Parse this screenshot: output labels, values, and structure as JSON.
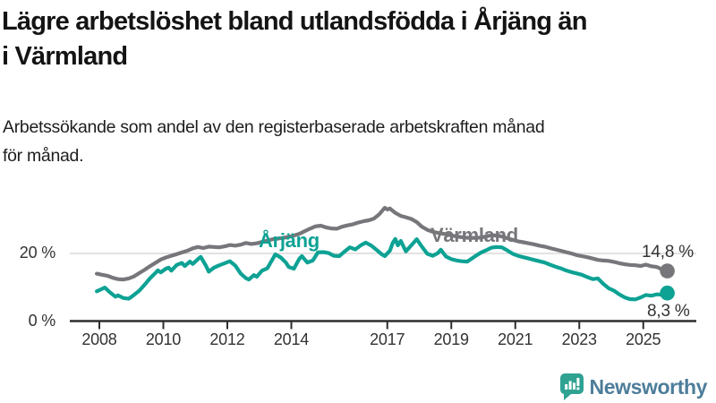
{
  "header": {
    "title_lines": [
      "Lägre arbetslöshet bland utlandsfödda i Årjäng än",
      "i Värmland"
    ],
    "subtitle_lines": [
      "Arbetssökande som andel av den registerbaserade arbetskraften månad",
      "för månad."
    ]
  },
  "footer": {
    "brand": "Newsworthy"
  },
  "colors": {
    "arjang": "#0da294",
    "varmland": "#76767b",
    "grid": "#d9d9d9",
    "axis": "#2d2d2d",
    "tick_text": "#333333",
    "title_text": "#141414",
    "brand_mark": "#2fa292",
    "brand_text": "#4d7d9a"
  },
  "chart_data": {
    "type": "line",
    "title": "Lägre arbetslöshet bland utlandsfödda i Årjäng än i Värmland",
    "subtitle": "Arbetssökande som andel av den registerbaserade arbetskraften månad för månad.",
    "unit": "%",
    "x_range": [
      2008,
      2025.75
    ],
    "ylim": [
      0,
      37
    ],
    "grid": "single-line-at-20",
    "legend_position": "inline-labels",
    "x_ticks": [
      2008,
      2010,
      2012,
      2014,
      2017,
      2019,
      2021,
      2023,
      2025
    ],
    "y_ticks": [
      {
        "value": 20,
        "label": "20 %"
      },
      {
        "value": 0,
        "label": "0 %"
      }
    ],
    "series": [
      {
        "name": "Värmland",
        "color": "#76767b",
        "end_label": "14,8 %",
        "end_value": 14.8,
        "points": [
          [
            2007.92,
            14.0
          ],
          [
            2008.08,
            13.7
          ],
          [
            2008.25,
            13.4
          ],
          [
            2008.42,
            12.8
          ],
          [
            2008.58,
            12.4
          ],
          [
            2008.75,
            12.3
          ],
          [
            2008.92,
            12.6
          ],
          [
            2009.08,
            13.2
          ],
          [
            2009.25,
            14.2
          ],
          [
            2009.42,
            15.2
          ],
          [
            2009.58,
            16.2
          ],
          [
            2009.75,
            17.2
          ],
          [
            2009.92,
            18.2
          ],
          [
            2010.08,
            18.8
          ],
          [
            2010.25,
            19.3
          ],
          [
            2010.42,
            19.8
          ],
          [
            2010.58,
            20.3
          ],
          [
            2010.75,
            20.8
          ],
          [
            2010.92,
            21.5
          ],
          [
            2011.08,
            21.9
          ],
          [
            2011.25,
            21.6
          ],
          [
            2011.42,
            22.0
          ],
          [
            2011.58,
            21.9
          ],
          [
            2011.75,
            21.8
          ],
          [
            2011.92,
            22.1
          ],
          [
            2012.08,
            22.5
          ],
          [
            2012.25,
            22.3
          ],
          [
            2012.42,
            22.6
          ],
          [
            2012.58,
            23.1
          ],
          [
            2012.75,
            22.8
          ],
          [
            2012.92,
            23.0
          ],
          [
            2013.08,
            23.4
          ],
          [
            2013.25,
            23.8
          ],
          [
            2013.42,
            24.2
          ],
          [
            2013.58,
            24.4
          ],
          [
            2013.75,
            24.6
          ],
          [
            2013.92,
            24.9
          ],
          [
            2014.08,
            25.3
          ],
          [
            2014.25,
            25.8
          ],
          [
            2014.42,
            26.6
          ],
          [
            2014.58,
            27.3
          ],
          [
            2014.75,
            28.0
          ],
          [
            2014.92,
            28.2
          ],
          [
            2015.08,
            27.7
          ],
          [
            2015.25,
            27.4
          ],
          [
            2015.42,
            27.3
          ],
          [
            2015.58,
            27.9
          ],
          [
            2015.75,
            28.3
          ],
          [
            2015.92,
            28.6
          ],
          [
            2016.08,
            29.1
          ],
          [
            2016.25,
            29.5
          ],
          [
            2016.42,
            29.8
          ],
          [
            2016.58,
            30.3
          ],
          [
            2016.75,
            31.6
          ],
          [
            2016.92,
            33.5
          ],
          [
            2017.0,
            33.0
          ],
          [
            2017.08,
            33.3
          ],
          [
            2017.25,
            32.0
          ],
          [
            2017.42,
            31.1
          ],
          [
            2017.58,
            30.7
          ],
          [
            2017.75,
            30.2
          ],
          [
            2017.92,
            29.3
          ],
          [
            2018.08,
            27.9
          ],
          [
            2018.25,
            27.0
          ],
          [
            2018.42,
            26.4
          ],
          [
            2018.58,
            26.1
          ],
          [
            2018.75,
            25.8
          ],
          [
            2018.92,
            25.5
          ],
          [
            2019.08,
            25.2
          ],
          [
            2019.25,
            24.9
          ],
          [
            2019.42,
            24.7
          ],
          [
            2019.58,
            24.6
          ],
          [
            2019.75,
            24.6
          ],
          [
            2019.92,
            24.7
          ],
          [
            2020.08,
            25.0
          ],
          [
            2020.25,
            25.4
          ],
          [
            2020.42,
            25.3
          ],
          [
            2020.58,
            25.0
          ],
          [
            2020.75,
            24.5
          ],
          [
            2020.92,
            24.0
          ],
          [
            2021.08,
            23.6
          ],
          [
            2021.25,
            23.3
          ],
          [
            2021.42,
            23.0
          ],
          [
            2021.58,
            22.7
          ],
          [
            2021.75,
            22.3
          ],
          [
            2021.92,
            22.0
          ],
          [
            2022.08,
            21.6
          ],
          [
            2022.25,
            21.2
          ],
          [
            2022.42,
            20.8
          ],
          [
            2022.58,
            20.4
          ],
          [
            2022.75,
            20.0
          ],
          [
            2022.92,
            19.5
          ],
          [
            2023.08,
            19.2
          ],
          [
            2023.25,
            18.9
          ],
          [
            2023.42,
            18.5
          ],
          [
            2023.58,
            18.1
          ],
          [
            2023.75,
            17.9
          ],
          [
            2023.92,
            17.8
          ],
          [
            2024.08,
            17.5
          ],
          [
            2024.25,
            17.1
          ],
          [
            2024.42,
            16.8
          ],
          [
            2024.58,
            16.6
          ],
          [
            2024.75,
            16.5
          ],
          [
            2024.92,
            16.3
          ],
          [
            2025.08,
            16.7
          ],
          [
            2025.25,
            16.2
          ],
          [
            2025.42,
            16.0
          ],
          [
            2025.58,
            15.3
          ],
          [
            2025.75,
            14.8
          ]
        ]
      },
      {
        "name": "Årjäng",
        "color": "#0da294",
        "end_label": "8,3 %",
        "end_value": 8.3,
        "points": [
          [
            2007.92,
            8.8
          ],
          [
            2008.08,
            9.5
          ],
          [
            2008.17,
            9.9
          ],
          [
            2008.33,
            8.5
          ],
          [
            2008.5,
            7.2
          ],
          [
            2008.58,
            7.6
          ],
          [
            2008.75,
            6.8
          ],
          [
            2008.92,
            6.6
          ],
          [
            2009.08,
            7.7
          ],
          [
            2009.25,
            9.0
          ],
          [
            2009.42,
            10.8
          ],
          [
            2009.58,
            12.6
          ],
          [
            2009.75,
            14.2
          ],
          [
            2009.83,
            15.0
          ],
          [
            2009.92,
            14.4
          ],
          [
            2010.08,
            15.5
          ],
          [
            2010.17,
            15.8
          ],
          [
            2010.25,
            14.9
          ],
          [
            2010.42,
            16.6
          ],
          [
            2010.58,
            17.2
          ],
          [
            2010.67,
            16.3
          ],
          [
            2010.83,
            17.6
          ],
          [
            2010.92,
            16.9
          ],
          [
            2011.08,
            18.3
          ],
          [
            2011.17,
            19.0
          ],
          [
            2011.33,
            16.4
          ],
          [
            2011.42,
            14.6
          ],
          [
            2011.58,
            15.8
          ],
          [
            2011.75,
            16.5
          ],
          [
            2011.92,
            17.1
          ],
          [
            2012.08,
            17.7
          ],
          [
            2012.25,
            16.4
          ],
          [
            2012.42,
            14.0
          ],
          [
            2012.58,
            12.7
          ],
          [
            2012.67,
            12.3
          ],
          [
            2012.83,
            13.6
          ],
          [
            2012.92,
            13.1
          ],
          [
            2013.08,
            14.9
          ],
          [
            2013.25,
            15.6
          ],
          [
            2013.42,
            18.4
          ],
          [
            2013.5,
            19.7
          ],
          [
            2013.67,
            18.8
          ],
          [
            2013.83,
            17.3
          ],
          [
            2013.92,
            16.0
          ],
          [
            2014.08,
            15.5
          ],
          [
            2014.25,
            18.4
          ],
          [
            2014.33,
            19.2
          ],
          [
            2014.5,
            17.3
          ],
          [
            2014.67,
            17.9
          ],
          [
            2014.83,
            20.3
          ],
          [
            2015.0,
            20.4
          ],
          [
            2015.17,
            20.1
          ],
          [
            2015.33,
            19.3
          ],
          [
            2015.5,
            19.2
          ],
          [
            2015.67,
            20.6
          ],
          [
            2015.83,
            21.8
          ],
          [
            2016.0,
            21.2
          ],
          [
            2016.17,
            22.4
          ],
          [
            2016.33,
            23.2
          ],
          [
            2016.5,
            22.3
          ],
          [
            2016.67,
            21.0
          ],
          [
            2016.83,
            19.7
          ],
          [
            2016.92,
            19.2
          ],
          [
            2017.08,
            20.8
          ],
          [
            2017.17,
            23.1
          ],
          [
            2017.25,
            24.3
          ],
          [
            2017.33,
            22.4
          ],
          [
            2017.42,
            23.7
          ],
          [
            2017.58,
            20.6
          ],
          [
            2017.75,
            22.4
          ],
          [
            2017.92,
            24.2
          ],
          [
            2018.08,
            22.0
          ],
          [
            2018.25,
            19.9
          ],
          [
            2018.42,
            19.3
          ],
          [
            2018.58,
            20.1
          ],
          [
            2018.67,
            21.1
          ],
          [
            2018.83,
            19.1
          ],
          [
            2019.0,
            18.3
          ],
          [
            2019.17,
            17.9
          ],
          [
            2019.33,
            17.7
          ],
          [
            2019.5,
            17.6
          ],
          [
            2019.75,
            19.2
          ],
          [
            2019.92,
            20.2
          ],
          [
            2020.08,
            20.9
          ],
          [
            2020.25,
            21.7
          ],
          [
            2020.42,
            21.9
          ],
          [
            2020.58,
            21.8
          ],
          [
            2020.75,
            20.9
          ],
          [
            2020.92,
            19.9
          ],
          [
            2021.08,
            19.3
          ],
          [
            2021.25,
            18.9
          ],
          [
            2021.42,
            18.5
          ],
          [
            2021.58,
            18.1
          ],
          [
            2021.75,
            17.7
          ],
          [
            2021.92,
            17.3
          ],
          [
            2022.08,
            16.7
          ],
          [
            2022.25,
            16.1
          ],
          [
            2022.42,
            15.6
          ],
          [
            2022.58,
            15.0
          ],
          [
            2022.75,
            14.5
          ],
          [
            2022.92,
            14.1
          ],
          [
            2023.08,
            13.7
          ],
          [
            2023.25,
            13.0
          ],
          [
            2023.42,
            12.4
          ],
          [
            2023.58,
            12.6
          ],
          [
            2023.75,
            11.0
          ],
          [
            2023.92,
            9.7
          ],
          [
            2024.08,
            9.0
          ],
          [
            2024.25,
            7.9
          ],
          [
            2024.42,
            7.0
          ],
          [
            2024.58,
            6.5
          ],
          [
            2024.75,
            6.4
          ],
          [
            2024.92,
            7.0
          ],
          [
            2025.08,
            7.7
          ],
          [
            2025.25,
            7.5
          ],
          [
            2025.42,
            7.9
          ],
          [
            2025.58,
            7.8
          ],
          [
            2025.75,
            8.3
          ]
        ]
      }
    ]
  }
}
